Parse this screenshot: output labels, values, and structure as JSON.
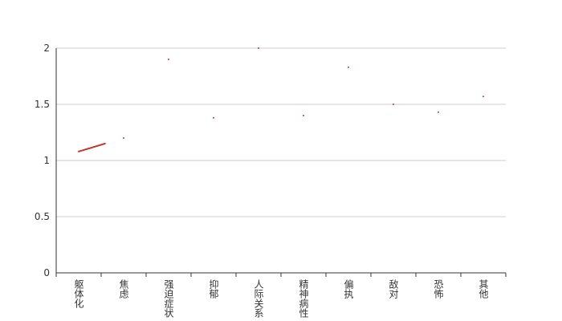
{
  "chart_data": {
    "type": "line",
    "categories": [
      "躯体化",
      "焦虑",
      "强迫症状",
      "抑郁",
      "人际关系",
      "精神病性",
      "偏执",
      "敌对",
      "恐怖",
      "其他"
    ],
    "series": [
      {
        "color": "#c23531",
        "values": [
          1.08,
          1.2,
          1.9,
          1.38,
          2.0,
          1.4,
          1.83,
          1.5,
          1.43,
          1.57
        ]
      }
    ],
    "ylim": [
      0,
      2
    ],
    "yticks": [
      0,
      0.5,
      1,
      1.5,
      2
    ],
    "grid": true
  }
}
